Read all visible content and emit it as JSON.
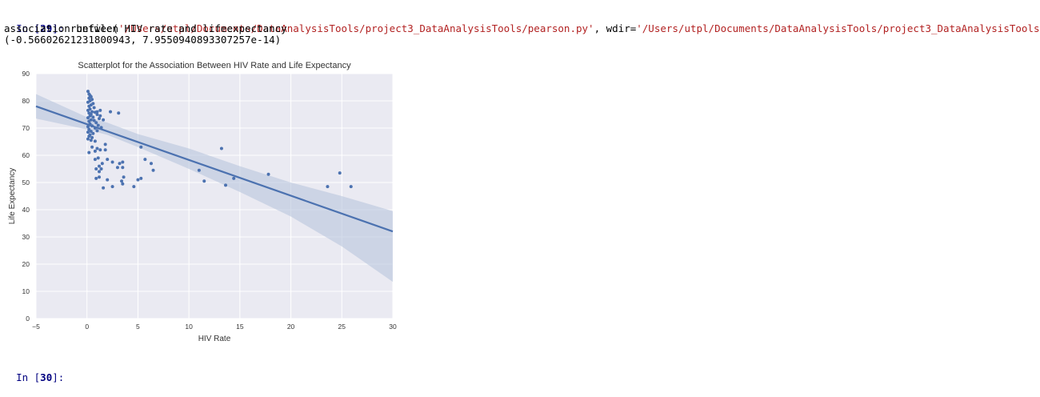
{
  "console": {
    "in29": {
      "prompt_in": "In [",
      "prompt_num": "29",
      "prompt_close": "]: ",
      "code_prefix": "runfile(",
      "code_path": "'/Users/utpl/Documents/DataAnalysisTools/project3_DataAnalysisTools/pearson.py'",
      "code_mid": ", wdir=",
      "code_wdir": "'/Users/utpl/Documents/DataAnalysisTools/project3_DataAnalysisTools'",
      "code_end": ")"
    },
    "output_line1": "association between HIV rate and lifeexpectancy",
    "output_line2": "(-0.56602621231800943, 7.9550940893307257e-14)",
    "in30": {
      "prompt_in": "In [",
      "prompt_num": "30",
      "prompt_close": "]: "
    }
  },
  "chart_data": {
    "type": "scatter",
    "title": "Scatterplot for the Association Between HIV Rate and Life Expectancy",
    "xlabel": "HIV Rate",
    "ylabel": "Life Expectancy",
    "xlim": [
      -5,
      30
    ],
    "ylim": [
      0,
      90
    ],
    "xticks": [
      -5,
      0,
      5,
      10,
      15,
      20,
      25,
      30
    ],
    "yticks": [
      0,
      10,
      20,
      30,
      40,
      50,
      60,
      70,
      80,
      90
    ],
    "grid": true,
    "colors": {
      "point": "#4c72b0",
      "line": "#4c72b0",
      "band": "#b8c4dc",
      "background": "#eaeaf2",
      "grid": "#ffffff"
    },
    "regression": {
      "x": [
        -5,
        30
      ],
      "y": [
        78.0,
        32.0
      ]
    },
    "confidence_band": {
      "x": [
        -5,
        0,
        2,
        5,
        10,
        15,
        20,
        25,
        30
      ],
      "lower": [
        73.5,
        69.5,
        67.5,
        63.0,
        55.0,
        46.5,
        37.5,
        26.5,
        13.5
      ],
      "upper": [
        82.5,
        74.0,
        72.0,
        67.8,
        62.5,
        56.0,
        50.0,
        45.0,
        39.5
      ]
    },
    "points": [
      [
        0.1,
        83.5
      ],
      [
        0.2,
        82.5
      ],
      [
        0.3,
        82
      ],
      [
        0.4,
        81.5
      ],
      [
        0.2,
        81
      ],
      [
        0.5,
        80.5
      ],
      [
        0.3,
        80
      ],
      [
        0.1,
        79.5
      ],
      [
        0.6,
        79
      ],
      [
        0.4,
        78.5
      ],
      [
        0.2,
        78
      ],
      [
        0.7,
        77.5
      ],
      [
        0.3,
        77
      ],
      [
        0.1,
        76.5
      ],
      [
        0.5,
        76
      ],
      [
        0.8,
        75.8
      ],
      [
        0.2,
        75.5
      ],
      [
        0.4,
        75
      ],
      [
        1.0,
        75
      ],
      [
        0.3,
        74.5
      ],
      [
        0.6,
        74
      ],
      [
        0.1,
        73.8
      ],
      [
        1.2,
        73.5
      ],
      [
        0.4,
        73
      ],
      [
        0.7,
        72.8
      ],
      [
        0.2,
        72.5
      ],
      [
        0.9,
        72
      ],
      [
        0.3,
        71.5
      ],
      [
        1.1,
        71
      ],
      [
        0.5,
        70.8
      ],
      [
        0.1,
        70.5
      ],
      [
        1.4,
        70.2
      ],
      [
        0.8,
        70
      ],
      [
        0.2,
        69.5
      ],
      [
        1.0,
        69
      ],
      [
        0.4,
        68.8
      ],
      [
        0.1,
        68.5
      ],
      [
        0.6,
        68
      ],
      [
        0.3,
        67.5
      ],
      [
        0.2,
        67
      ],
      [
        0.5,
        66.5
      ],
      [
        0.1,
        66
      ],
      [
        0.4,
        65.5
      ],
      [
        0.8,
        65.2
      ],
      [
        1.3,
        76.5
      ],
      [
        2.3,
        76
      ],
      [
        3.1,
        75.5
      ],
      [
        1.6,
        73
      ],
      [
        1.3,
        74.5
      ],
      [
        1.0,
        76
      ],
      [
        0.5,
        63
      ],
      [
        1.0,
        62.5
      ],
      [
        1.3,
        62
      ],
      [
        0.2,
        61
      ],
      [
        0.8,
        61.5
      ],
      [
        1.8,
        64
      ],
      [
        1.8,
        62
      ],
      [
        1.1,
        59
      ],
      [
        0.8,
        58.5
      ],
      [
        2.0,
        58.5
      ],
      [
        2.5,
        57.5
      ],
      [
        3.2,
        57
      ],
      [
        3.5,
        57.5
      ],
      [
        3.0,
        55.5
      ],
      [
        3.5,
        55.5
      ],
      [
        1.2,
        56
      ],
      [
        1.4,
        55
      ],
      [
        1.5,
        57
      ],
      [
        0.9,
        55
      ],
      [
        1.2,
        54
      ],
      [
        0.9,
        51.5
      ],
      [
        1.2,
        52
      ],
      [
        2.0,
        51
      ],
      [
        3.6,
        52
      ],
      [
        3.4,
        50.5
      ],
      [
        3.5,
        49.5
      ],
      [
        1.6,
        48
      ],
      [
        2.5,
        48.5
      ],
      [
        4.6,
        48.5
      ],
      [
        5.0,
        51
      ],
      [
        5.3,
        51.5
      ],
      [
        5.3,
        63
      ],
      [
        5.7,
        58.5
      ],
      [
        6.3,
        57
      ],
      [
        6.5,
        54.5
      ],
      [
        11.0,
        54.5
      ],
      [
        11.5,
        50.5
      ],
      [
        13.2,
        62.5
      ],
      [
        13.6,
        49
      ],
      [
        14.4,
        51.5
      ],
      [
        17.8,
        53
      ],
      [
        23.6,
        48.5
      ],
      [
        24.8,
        53.5
      ],
      [
        25.9,
        48.5
      ]
    ]
  }
}
